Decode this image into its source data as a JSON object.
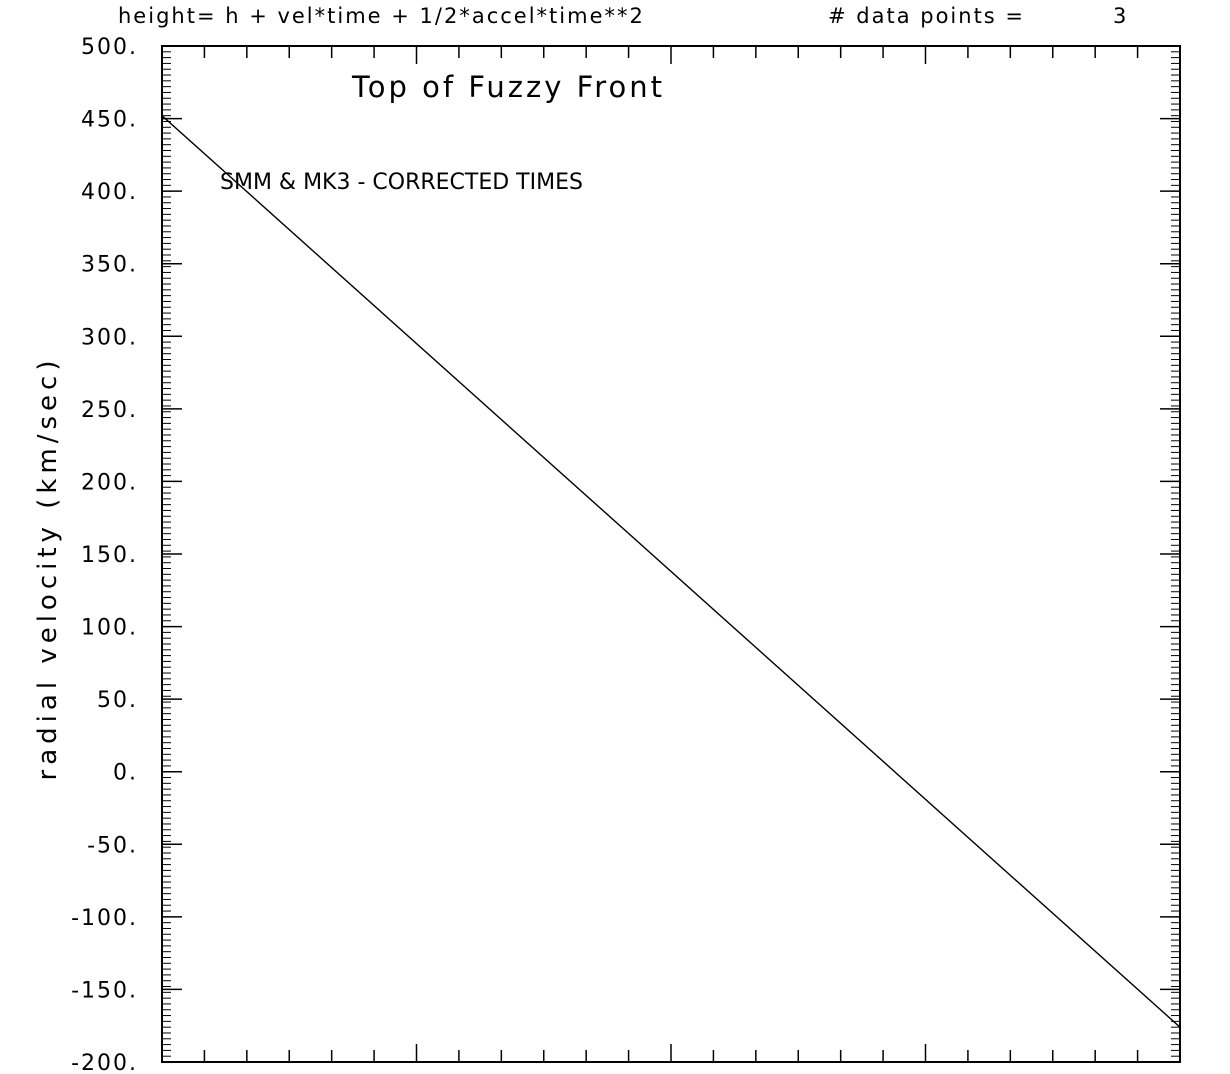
{
  "header": {
    "equation": "height= h + vel*time + 1/2*accel*time**2",
    "points_label": "# data points =",
    "points_value": "3"
  },
  "chart_data": {
    "type": "line",
    "title": "Top of Fuzzy Front",
    "subtitle": "SMM & MK3 - CORRECTED TIMES",
    "ylabel": "radial velocity (km/sec)",
    "xlabel": "",
    "ylim": [
      -200,
      500
    ],
    "yticks": [
      500,
      450,
      400,
      350,
      300,
      250,
      200,
      150,
      100,
      50,
      0,
      -50,
      -100,
      -150,
      -200
    ],
    "ytick_labels": [
      "500.",
      "450.",
      "400.",
      "350.",
      "300.",
      "250.",
      "200.",
      "150.",
      "100.",
      "50.",
      "0.",
      "-50.",
      "-100.",
      "-150.",
      "-200."
    ],
    "series": [
      {
        "values": [
          452,
          -176
        ]
      }
    ],
    "grid": false,
    "colors": {
      "line": "#000000",
      "axes": "#000000",
      "background": "#ffffff"
    }
  }
}
